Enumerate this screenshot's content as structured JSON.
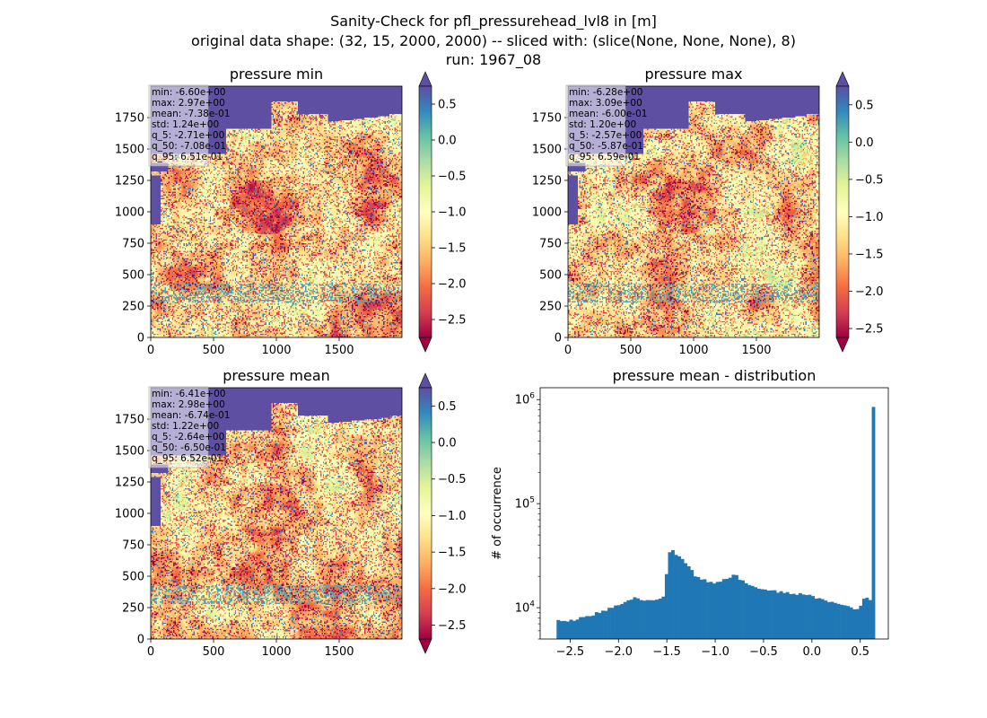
{
  "figure": {
    "title_lines": [
      "Sanity-Check for pfl_pressurehead_lvl8 in [m]",
      "original data shape: (32, 15, 2000, 2000) -- sliced with: (slice(None, None, None), 8)",
      "run: 1967_08"
    ]
  },
  "colors": {
    "spectral_cmap": [
      "#9e0142",
      "#d53e4f",
      "#f46d43",
      "#fdae61",
      "#fee08b",
      "#ffffbf",
      "#e6f598",
      "#abdda4",
      "#66c2a5",
      "#3288bd",
      "#5e4fa2"
    ],
    "ocean": "#5e4fa2",
    "hist_bar": "#1f77b4"
  },
  "chart_data": [
    {
      "type": "heatmap",
      "title": "pressure min",
      "x_ticks": [
        0,
        500,
        1000,
        1500
      ],
      "y_ticks": [
        0,
        250,
        500,
        750,
        1000,
        1250,
        1500,
        1750
      ],
      "xlim": [
        0,
        2000
      ],
      "ylim": [
        0,
        2000
      ],
      "colorbar": {
        "range": [
          -2.75,
          0.75
        ],
        "ticks": [
          -2.5,
          -2.0,
          -1.5,
          -1.0,
          -0.5,
          0.0,
          0.5
        ],
        "tick_labels": [
          "−2.5",
          "−2.0",
          "−1.5",
          "−1.0",
          "−0.5",
          "0.0",
          "0.5"
        ],
        "extend": "both"
      },
      "stats": [
        "min: -6.60e+00",
        "max: 2.97e+00",
        "mean: -7.38e-01",
        "std: 1.24e+00",
        "q_5: -2.71e+00",
        "q_50: -7.08e-01",
        "q_95: 6.51e-01"
      ]
    },
    {
      "type": "heatmap",
      "title": "pressure max",
      "x_ticks": [
        0,
        500,
        1000,
        1500
      ],
      "y_ticks": [
        0,
        250,
        500,
        750,
        1000,
        1250,
        1500,
        1750
      ],
      "xlim": [
        0,
        2000
      ],
      "ylim": [
        0,
        2000
      ],
      "colorbar": {
        "range": [
          -2.62,
          0.75
        ],
        "ticks": [
          -2.5,
          -2.0,
          -1.5,
          -1.0,
          -0.5,
          0.0,
          0.5
        ],
        "tick_labels": [
          "−2.5",
          "−2.0",
          "−1.5",
          "−1.0",
          "−0.5",
          "0.0",
          "0.5"
        ],
        "extend": "both"
      },
      "stats": [
        "min: -6.28e+00",
        "max: 3.09e+00",
        "mean: -6.00e-01",
        "std: 1.20e+00",
        "q_5: -2.57e+00",
        "q_50: -5.87e-01",
        "q_95: 6.59e-01"
      ]
    },
    {
      "type": "heatmap",
      "title": "pressure mean",
      "x_ticks": [
        0,
        500,
        1000,
        1500
      ],
      "y_ticks": [
        0,
        250,
        500,
        750,
        1000,
        1250,
        1500,
        1750
      ],
      "xlim": [
        0,
        2000
      ],
      "ylim": [
        0,
        2000
      ],
      "colorbar": {
        "range": [
          -2.69,
          0.75
        ],
        "ticks": [
          -2.5,
          -2.0,
          -1.5,
          -1.0,
          -0.5,
          0.0,
          0.5
        ],
        "tick_labels": [
          "−2.5",
          "−2.0",
          "−1.5",
          "−1.0",
          "−0.5",
          "0.0",
          "0.5"
        ],
        "extend": "both"
      },
      "stats": [
        "min: -6.41e+00",
        "max: 2.98e+00",
        "mean: -6.74e-01",
        "std: 1.22e+00",
        "q_5: -2.64e+00",
        "q_50: -6.50e-01",
        "q_95: 6.52e-01"
      ]
    },
    {
      "type": "bar",
      "title": "pressure mean - distribution",
      "ylabel": "# of occurrence",
      "yscale": "log",
      "xlim": [
        -2.81,
        0.79
      ],
      "ylim": [
        5000,
        1300000
      ],
      "x_ticks": [
        -2.5,
        -2.0,
        -1.5,
        -1.0,
        -0.5,
        0.0,
        0.5
      ],
      "x_tick_labels": [
        "−2.5",
        "−2.0",
        "−1.5",
        "−1.0",
        "−0.5",
        "0.0",
        "0.5"
      ],
      "y_ticks": [
        10000,
        100000,
        1000000
      ],
      "y_tick_labels": [
        {
          "base": "10",
          "exp": "4"
        },
        {
          "base": "10",
          "exp": "5"
        },
        {
          "base": "10",
          "exp": "6"
        }
      ],
      "bin_range": [
        -2.64,
        0.652
      ],
      "bins": 100,
      "profile": [
        [
          -2.64,
          7500
        ],
        [
          -2.5,
          7500
        ],
        [
          -2.3,
          8300
        ],
        [
          -2.1,
          9800
        ],
        [
          -2.0,
          10500
        ],
        [
          -1.9,
          12000
        ],
        [
          -1.8,
          12500
        ],
        [
          -1.7,
          11500
        ],
        [
          -1.6,
          12000
        ],
        [
          -1.51,
          13500
        ],
        [
          -1.5,
          30000
        ],
        [
          -1.45,
          36000
        ],
        [
          -1.4,
          32000
        ],
        [
          -1.3,
          27000
        ],
        [
          -1.2,
          20000
        ],
        [
          -1.0,
          17000
        ],
        [
          -0.9,
          18500
        ],
        [
          -0.8,
          21000
        ],
        [
          -0.7,
          17500
        ],
        [
          -0.6,
          15500
        ],
        [
          -0.5,
          15000
        ],
        [
          -0.3,
          14000
        ],
        [
          -0.1,
          13500
        ],
        [
          0.0,
          13000
        ],
        [
          0.1,
          12000
        ],
        [
          0.2,
          11500
        ],
        [
          0.35,
          10500
        ],
        [
          0.45,
          9500
        ],
        [
          0.5,
          10500
        ],
        [
          0.55,
          12500
        ],
        [
          0.6,
          12000
        ],
        [
          0.63,
          14000
        ],
        [
          0.64,
          16500
        ]
      ],
      "last_bin_value": 850000
    }
  ]
}
